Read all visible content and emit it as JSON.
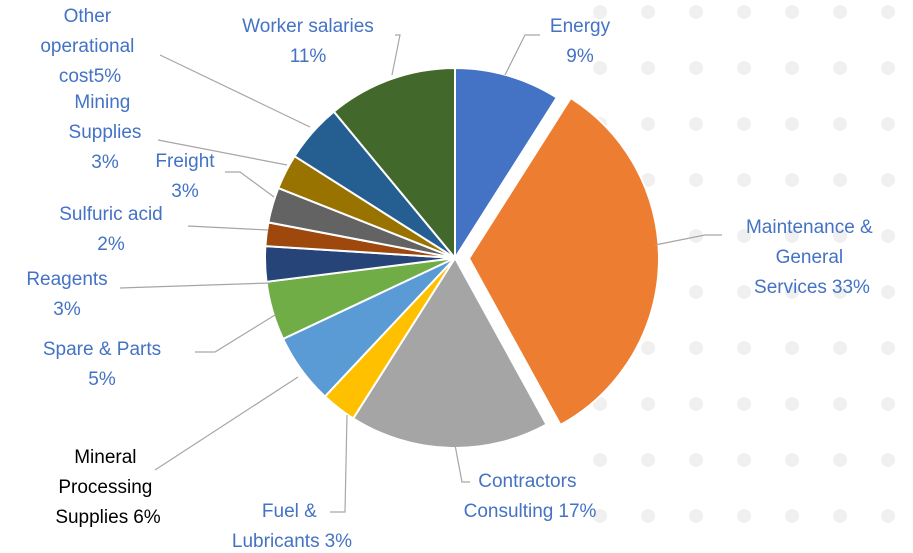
{
  "chart_data": {
    "type": "pie",
    "categories": [
      "Energy",
      "Maintenance & General Services",
      "Contractors Consulting",
      "Fuel & Lubricants",
      "Mineral Processing Supplies",
      "Spare & Parts",
      "Reagents",
      "Sulfuric acid",
      "Freight",
      "Mining Supplies",
      "Other operational cost",
      "Worker salaries"
    ],
    "values": [
      9,
      33,
      17,
      3,
      6,
      5,
      3,
      2,
      3,
      3,
      5,
      11
    ],
    "value_labels": [
      "9%",
      "33%",
      "17%",
      "3%",
      "6%",
      "5%",
      "3%",
      "2%",
      "3%",
      "3%",
      "5%",
      "11%"
    ],
    "colors": [
      "#4472c4",
      "#ed7d31",
      "#a5a5a5",
      "#ffc000",
      "#5b9bd5",
      "#70ad47",
      "#264478",
      "#9e480e",
      "#636363",
      "#997300",
      "#255e91",
      "#43682b"
    ],
    "exploded": [
      1
    ]
  }
}
